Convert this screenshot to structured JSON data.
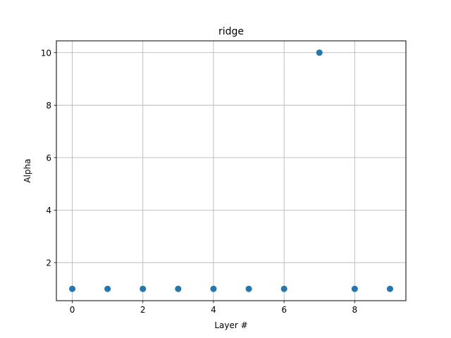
{
  "chart_data": {
    "type": "scatter",
    "title": "ridge",
    "xlabel": "Layer #",
    "ylabel": "Alpha",
    "x": [
      0,
      1,
      2,
      3,
      4,
      5,
      6,
      7,
      8,
      9
    ],
    "y": [
      1,
      1,
      1,
      1,
      1,
      1,
      1,
      10,
      1,
      1
    ],
    "xlim": [
      -0.45,
      9.45
    ],
    "ylim": [
      0.55,
      10.45
    ],
    "xticks": [
      0,
      2,
      4,
      6,
      8
    ],
    "yticks": [
      2,
      4,
      6,
      8,
      10
    ],
    "grid": true,
    "marker_color": "#1f77b4"
  }
}
